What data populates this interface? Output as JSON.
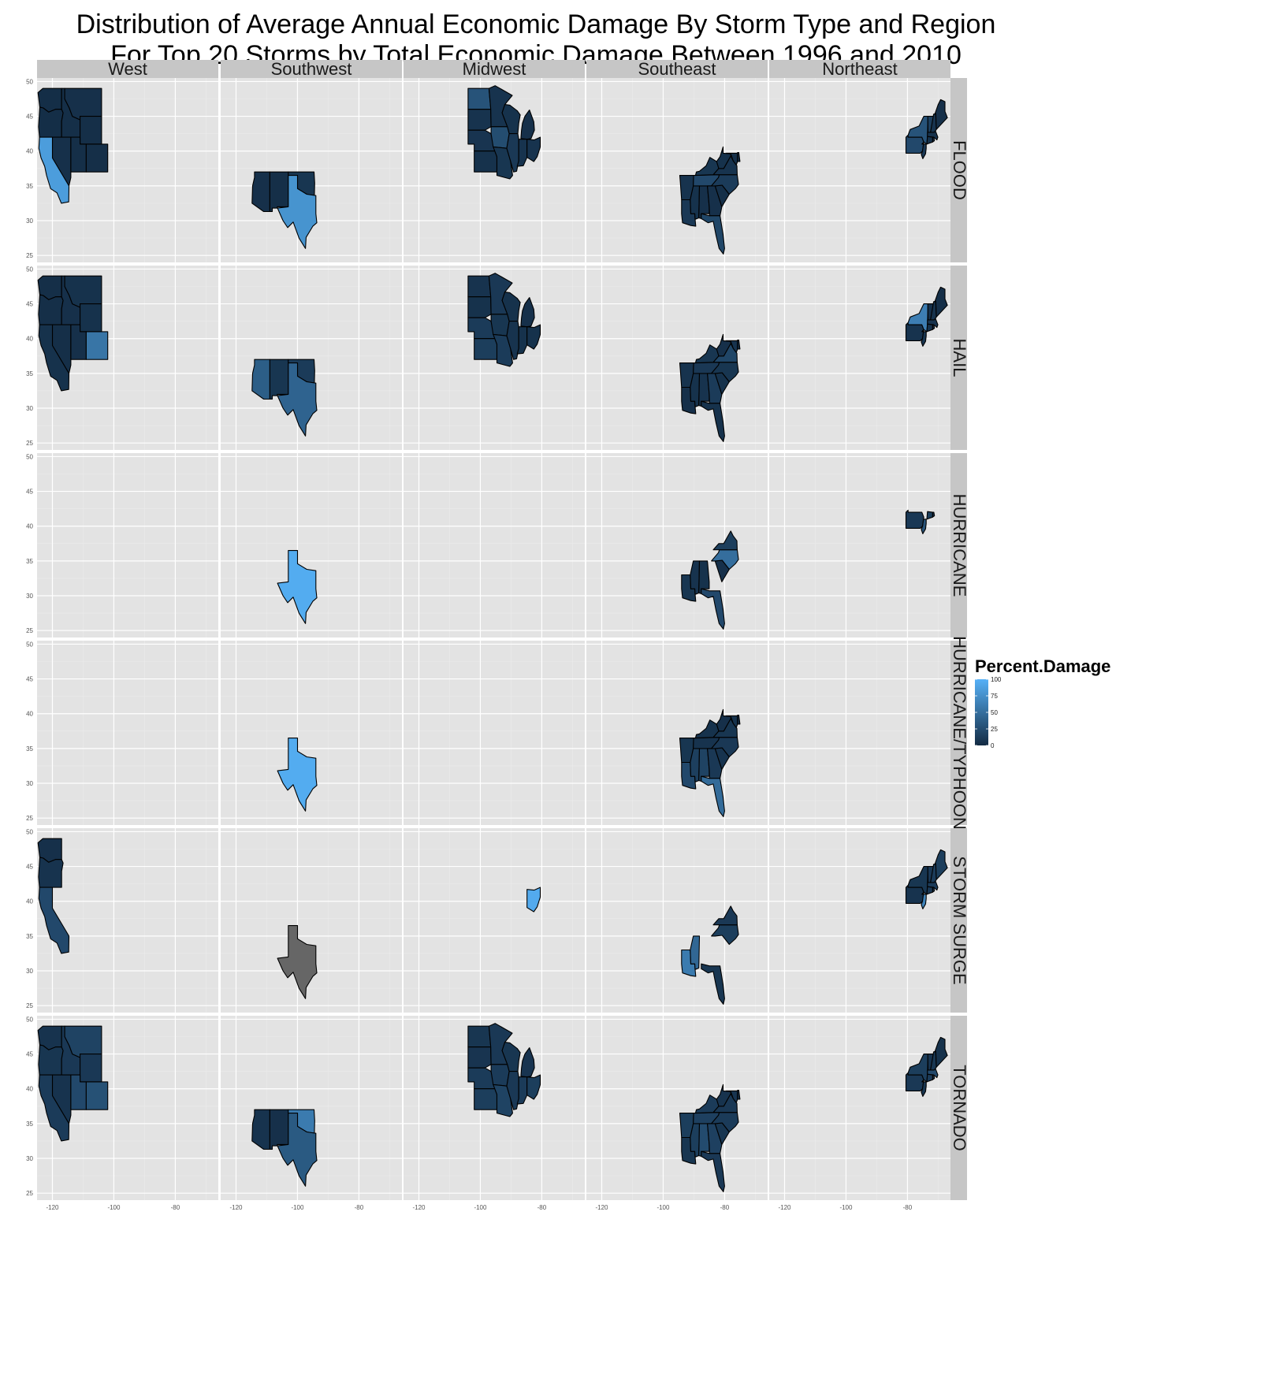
{
  "chart_data": {
    "type": "heatmap",
    "title": "Distribution of Average Annual Economic Damage By Storm Type and Region",
    "subtitle": "For Top 20 Storms by Total Economic Damage Between 1996 and 2010",
    "columns": [
      "West",
      "Southwest",
      "Midwest",
      "Southeast",
      "Northeast"
    ],
    "rows": [
      "FLOOD",
      "HAIL",
      "HURRICANE",
      "HURRICANE/TYPHOON",
      "STORM SURGE",
      "TORNADO"
    ],
    "x_ticks": [
      -120,
      -100,
      -80
    ],
    "y_ticks": [
      25,
      30,
      35,
      40,
      45,
      50
    ],
    "xlim": [
      -125,
      -66
    ],
    "ylim": [
      24,
      50.5
    ],
    "grid": true,
    "legend": {
      "title": "Percent.Damage",
      "ticks": [
        0,
        25,
        50,
        75,
        100
      ],
      "low_color": "#132B43",
      "high_color": "#56B1F7",
      "position": "right"
    },
    "na_color": "#666666",
    "panels": [
      {
        "row": "FLOOD",
        "column": "West",
        "states": [
          [
            "WA",
            2
          ],
          [
            "OR",
            2
          ],
          [
            "ID",
            3
          ],
          [
            "MT",
            4
          ],
          [
            "WY",
            3
          ],
          [
            "NV",
            4
          ],
          [
            "UT",
            3
          ],
          [
            "CO",
            3
          ],
          [
            "CA",
            85
          ]
        ]
      },
      {
        "row": "FLOOD",
        "column": "Southwest",
        "states": [
          [
            "AZ",
            4
          ],
          [
            "NM",
            3
          ],
          [
            "OK",
            8
          ],
          [
            "TX",
            78
          ]
        ]
      },
      {
        "row": "FLOOD",
        "column": "Midwest",
        "states": [
          [
            "ND",
            30
          ],
          [
            "SD",
            6
          ],
          [
            "NE",
            7
          ],
          [
            "KS",
            5
          ],
          [
            "MN",
            6
          ],
          [
            "IA",
            25
          ],
          [
            "MO",
            8
          ],
          [
            "WI",
            5
          ],
          [
            "IL",
            10
          ],
          [
            "MI",
            4
          ],
          [
            "IN",
            6
          ],
          [
            "OH",
            6
          ]
        ]
      },
      {
        "row": "FLOOD",
        "column": "Southeast",
        "states": [
          [
            "AR",
            6
          ],
          [
            "LA",
            10
          ],
          [
            "MS",
            5
          ],
          [
            "AL",
            4
          ],
          [
            "TN",
            22
          ],
          [
            "KY",
            8
          ],
          [
            "GA",
            4
          ],
          [
            "FL",
            20
          ],
          [
            "SC",
            3
          ],
          [
            "NC",
            12
          ],
          [
            "VA",
            6
          ],
          [
            "WV",
            5
          ],
          [
            "MD",
            3
          ],
          [
            "DE",
            2
          ]
        ]
      },
      {
        "row": "FLOOD",
        "column": "Northeast",
        "states": [
          [
            "PA",
            22
          ],
          [
            "NY",
            30
          ],
          [
            "NJ",
            10
          ],
          [
            "CT",
            5
          ],
          [
            "RI",
            3
          ],
          [
            "MA",
            5
          ],
          [
            "VT",
            15
          ],
          [
            "NH",
            6
          ],
          [
            "ME",
            4
          ]
        ]
      },
      {
        "row": "HAIL",
        "column": "West",
        "states": [
          [
            "WA",
            3
          ],
          [
            "OR",
            3
          ],
          [
            "ID",
            4
          ],
          [
            "MT",
            5
          ],
          [
            "WY",
            5
          ],
          [
            "NV",
            3
          ],
          [
            "UT",
            4
          ],
          [
            "CO",
            55
          ],
          [
            "CA",
            5
          ]
        ]
      },
      {
        "row": "HAIL",
        "column": "Southwest",
        "states": [
          [
            "AZ",
            38
          ],
          [
            "NM",
            8
          ],
          [
            "OK",
            12
          ],
          [
            "TX",
            42
          ]
        ]
      },
      {
        "row": "HAIL",
        "column": "Midwest",
        "states": [
          [
            "ND",
            6
          ],
          [
            "SD",
            5
          ],
          [
            "NE",
            12
          ],
          [
            "KS",
            14
          ],
          [
            "MN",
            10
          ],
          [
            "IA",
            8
          ],
          [
            "MO",
            12
          ],
          [
            "WI",
            5
          ],
          [
            "IL",
            6
          ],
          [
            "MI",
            4
          ],
          [
            "IN",
            5
          ],
          [
            "OH",
            5
          ]
        ]
      },
      {
        "row": "HAIL",
        "column": "Southeast",
        "states": [
          [
            "AR",
            6
          ],
          [
            "LA",
            4
          ],
          [
            "MS",
            5
          ],
          [
            "AL",
            6
          ],
          [
            "TN",
            10
          ],
          [
            "KY",
            8
          ],
          [
            "GA",
            12
          ],
          [
            "FL",
            5
          ],
          [
            "SC",
            5
          ],
          [
            "NC",
            8
          ],
          [
            "VA",
            20
          ],
          [
            "WV",
            4
          ],
          [
            "MD",
            6
          ],
          [
            "DE",
            2
          ]
        ]
      },
      {
        "row": "HAIL",
        "column": "Northeast",
        "states": [
          [
            "PA",
            6
          ],
          [
            "NY",
            62
          ],
          [
            "NJ",
            8
          ],
          [
            "CT",
            5
          ],
          [
            "RI",
            2
          ],
          [
            "MA",
            6
          ],
          [
            "VT",
            4
          ],
          [
            "NH",
            5
          ],
          [
            "ME",
            3
          ]
        ]
      },
      {
        "row": "HURRICANE",
        "column": "Southwest",
        "states": [
          [
            "TX",
            96
          ]
        ]
      },
      {
        "row": "HURRICANE",
        "column": "Southeast",
        "states": [
          [
            "LA",
            8
          ],
          [
            "MS",
            6
          ],
          [
            "AL",
            5
          ],
          [
            "FL",
            22
          ],
          [
            "SC",
            4
          ],
          [
            "NC",
            50
          ],
          [
            "VA",
            14
          ]
        ]
      },
      {
        "row": "HURRICANE",
        "column": "Northeast",
        "states": [
          [
            "NJ",
            30
          ],
          [
            "CT",
            14
          ],
          [
            "RI",
            6
          ],
          [
            "PA",
            10
          ]
        ]
      },
      {
        "row": "HURRICANE/TYPHOON",
        "column": "Southwest",
        "states": [
          [
            "TX",
            96
          ]
        ]
      },
      {
        "row": "HURRICANE/TYPHOON",
        "column": "Southeast",
        "states": [
          [
            "AR",
            8
          ],
          [
            "LA",
            22
          ],
          [
            "MS",
            15
          ],
          [
            "AL",
            18
          ],
          [
            "TN",
            6
          ],
          [
            "KY",
            5
          ],
          [
            "GA",
            10
          ],
          [
            "FL",
            48
          ],
          [
            "SC",
            6
          ],
          [
            "NC",
            10
          ],
          [
            "VA",
            8
          ],
          [
            "WV",
            4
          ],
          [
            "MD",
            5
          ],
          [
            "DE",
            3
          ]
        ]
      },
      {
        "row": "STORM SURGE",
        "column": "West",
        "states": [
          [
            "WA",
            4
          ],
          [
            "OR",
            6
          ],
          [
            "CA",
            22
          ]
        ]
      },
      {
        "row": "STORM SURGE",
        "column": "Southwest",
        "states": [
          [
            "TX",
            null
          ]
        ]
      },
      {
        "row": "STORM SURGE",
        "column": "Midwest",
        "states": [
          [
            "OH",
            95
          ]
        ]
      },
      {
        "row": "STORM SURGE",
        "column": "Southeast",
        "states": [
          [
            "LA",
            60
          ],
          [
            "MS",
            45
          ],
          [
            "FL",
            8
          ],
          [
            "NC",
            14
          ],
          [
            "VA",
            10
          ]
        ]
      },
      {
        "row": "STORM SURGE",
        "column": "Northeast",
        "states": [
          [
            "PA",
            6
          ],
          [
            "NY",
            8
          ],
          [
            "NJ",
            65
          ],
          [
            "CT",
            10
          ],
          [
            "RI",
            5
          ],
          [
            "MA",
            12
          ],
          [
            "VT",
            10
          ],
          [
            "NH",
            12
          ],
          [
            "ME",
            14
          ]
        ]
      },
      {
        "row": "TORNADO",
        "column": "West",
        "states": [
          [
            "WA",
            6
          ],
          [
            "OR",
            8
          ],
          [
            "ID",
            10
          ],
          [
            "MT",
            18
          ],
          [
            "WY",
            10
          ],
          [
            "NV",
            6
          ],
          [
            "UT",
            22
          ],
          [
            "CO",
            28
          ],
          [
            "CA",
            12
          ]
        ]
      },
      {
        "row": "TORNADO",
        "column": "Southwest",
        "states": [
          [
            "AZ",
            6
          ],
          [
            "NM",
            4
          ],
          [
            "OK",
            60
          ],
          [
            "TX",
            35
          ]
        ]
      },
      {
        "row": "TORNADO",
        "column": "Midwest",
        "states": [
          [
            "ND",
            8
          ],
          [
            "SD",
            7
          ],
          [
            "NE",
            12
          ],
          [
            "KS",
            14
          ],
          [
            "MN",
            10
          ],
          [
            "IA",
            12
          ],
          [
            "MO",
            18
          ],
          [
            "WI",
            8
          ],
          [
            "IL",
            10
          ],
          [
            "MI",
            7
          ],
          [
            "IN",
            12
          ],
          [
            "OH",
            14
          ]
        ]
      },
      {
        "row": "TORNADO",
        "column": "Southeast",
        "states": [
          [
            "AR",
            14
          ],
          [
            "LA",
            8
          ],
          [
            "MS",
            14
          ],
          [
            "AL",
            24
          ],
          [
            "TN",
            16
          ],
          [
            "KY",
            12
          ],
          [
            "GA",
            16
          ],
          [
            "FL",
            10
          ],
          [
            "SC",
            8
          ],
          [
            "NC",
            12
          ],
          [
            "VA",
            10
          ],
          [
            "WV",
            6
          ],
          [
            "MD",
            7
          ],
          [
            "DE",
            3
          ]
        ]
      },
      {
        "row": "TORNADO",
        "column": "Northeast",
        "states": [
          [
            "PA",
            10
          ],
          [
            "NY",
            14
          ],
          [
            "NJ",
            8
          ],
          [
            "CT",
            12
          ],
          [
            "RI",
            4
          ],
          [
            "MA",
            22
          ],
          [
            "VT",
            6
          ],
          [
            "NH",
            8
          ],
          [
            "ME",
            5
          ]
        ]
      }
    ]
  }
}
